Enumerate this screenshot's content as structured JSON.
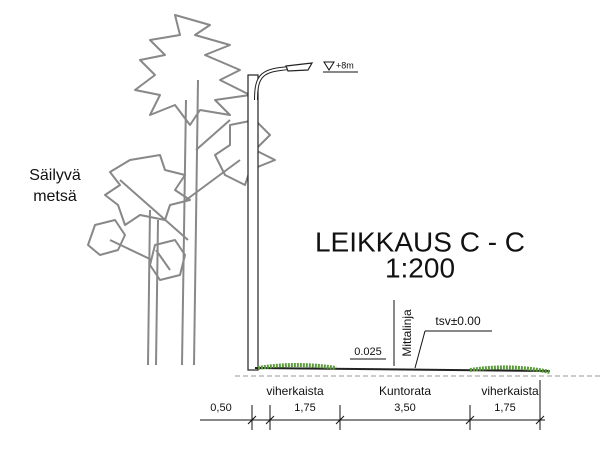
{
  "labels": {
    "forest": [
      "Säilyvä",
      "metsä"
    ],
    "title": "LEIKKAUS C - C",
    "scale": "1:200",
    "measure_line": "Mittalinja",
    "level": "tsv±0.00",
    "slope": "0.025",
    "height": "+8m"
  },
  "zones": [
    {
      "width": "0,50"
    },
    {
      "name": "viherkaista",
      "width": "1,75"
    },
    {
      "name": "Kuntorata",
      "width": "3,50"
    },
    {
      "name": "viherkaista",
      "width": "1,75"
    }
  ]
}
